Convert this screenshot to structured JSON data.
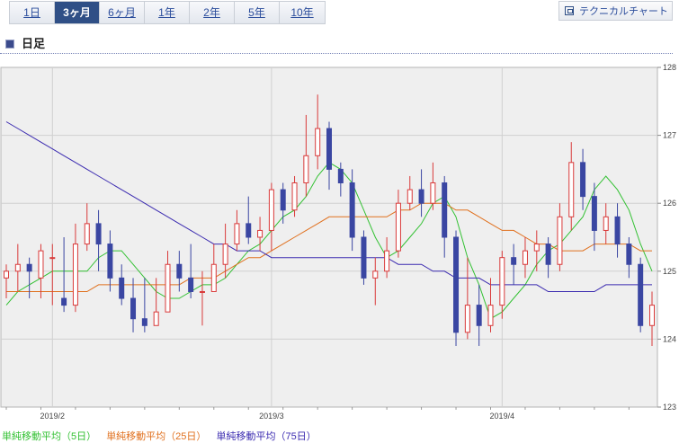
{
  "periods": [
    "1日",
    "3ヶ月",
    "6ヶ月",
    "1年",
    "2年",
    "5年",
    "10年"
  ],
  "active_period": "3ヶ月",
  "technical_button": "テクニカルチャート",
  "section_title": "日足",
  "legend": {
    "ma5": "単純移動平均（5日）",
    "ma25": "単純移動平均（25日）",
    "ma75": "単純移動平均（75日）"
  },
  "colors": {
    "up": "#d93a3a",
    "down": "#3a46a2",
    "ma5": "#33c133",
    "ma25": "#e0701e",
    "ma75": "#3b2bb0",
    "tab_active": "#2f4f86"
  },
  "chart_data": {
    "type": "candlestick",
    "ylim": [
      123,
      128
    ],
    "y_ticks": [
      "128",
      "127",
      "126",
      "125",
      "124",
      "123"
    ],
    "x_ticks": [
      {
        "label": "2019/2",
        "index": 4
      },
      {
        "label": "2019/3",
        "index": 23
      },
      {
        "label": "2019/4",
        "index": 43
      }
    ],
    "candles": [
      [
        124.9,
        125.0,
        124.6,
        125.1
      ],
      [
        125.0,
        125.1,
        124.7,
        125.4
      ],
      [
        125.1,
        125.0,
        124.6,
        125.2
      ],
      [
        124.9,
        125.3,
        124.6,
        125.4
      ],
      [
        125.2,
        125.2,
        124.5,
        125.4
      ],
      [
        124.6,
        124.5,
        124.4,
        125.5
      ],
      [
        124.5,
        125.4,
        124.4,
        125.7
      ],
      [
        125.4,
        125.7,
        125.3,
        126.0
      ],
      [
        125.7,
        125.4,
        125.0,
        125.9
      ],
      [
        125.4,
        124.9,
        124.7,
        125.6
      ],
      [
        124.9,
        124.6,
        124.5,
        125.1
      ],
      [
        124.6,
        124.3,
        124.1,
        124.9
      ],
      [
        124.3,
        124.2,
        124.1,
        124.9
      ],
      [
        124.2,
        124.4,
        124.2,
        124.9
      ],
      [
        124.4,
        125.1,
        124.4,
        125.3
      ],
      [
        125.1,
        124.9,
        124.7,
        125.3
      ],
      [
        124.9,
        124.7,
        124.6,
        125.4
      ],
      [
        124.7,
        124.7,
        124.2,
        125.0
      ],
      [
        124.7,
        125.1,
        124.7,
        125.4
      ],
      [
        125.1,
        125.4,
        124.9,
        125.7
      ],
      [
        125.4,
        125.7,
        125.3,
        125.9
      ],
      [
        125.7,
        125.5,
        125.4,
        126.1
      ],
      [
        125.5,
        125.6,
        125.3,
        125.8
      ],
      [
        125.6,
        126.2,
        125.3,
        126.3
      ],
      [
        126.2,
        125.9,
        125.7,
        126.3
      ],
      [
        125.9,
        126.3,
        125.8,
        126.4
      ],
      [
        126.3,
        126.7,
        126.1,
        127.3
      ],
      [
        126.7,
        127.1,
        126.5,
        127.6
      ],
      [
        127.1,
        126.5,
        126.2,
        127.2
      ],
      [
        126.5,
        126.3,
        126.1,
        126.6
      ],
      [
        126.3,
        125.5,
        125.3,
        126.5
      ],
      [
        125.5,
        124.9,
        124.8,
        125.6
      ],
      [
        124.9,
        125.0,
        124.5,
        125.2
      ],
      [
        125.0,
        125.3,
        124.9,
        125.5
      ],
      [
        125.3,
        126.0,
        125.2,
        126.2
      ],
      [
        126.0,
        126.2,
        125.9,
        126.4
      ],
      [
        126.2,
        126.0,
        125.8,
        126.5
      ],
      [
        126.0,
        126.3,
        125.9,
        126.6
      ],
      [
        126.3,
        125.5,
        125.2,
        126.4
      ],
      [
        125.5,
        124.1,
        123.9,
        125.6
      ],
      [
        124.1,
        124.5,
        124.0,
        125.2
      ],
      [
        124.5,
        124.2,
        123.9,
        124.8
      ],
      [
        124.2,
        124.5,
        124.1,
        124.9
      ],
      [
        124.5,
        125.2,
        124.3,
        125.3
      ],
      [
        125.2,
        125.1,
        124.8,
        125.4
      ],
      [
        125.1,
        125.3,
        124.9,
        125.5
      ],
      [
        125.3,
        125.4,
        125.0,
        125.6
      ],
      [
        125.4,
        125.1,
        124.9,
        125.5
      ],
      [
        125.1,
        125.8,
        125.0,
        126.0
      ],
      [
        125.8,
        126.6,
        125.6,
        126.9
      ],
      [
        126.6,
        126.1,
        125.9,
        126.8
      ],
      [
        126.1,
        125.6,
        125.3,
        126.3
      ],
      [
        125.6,
        125.8,
        125.4,
        126.0
      ],
      [
        125.8,
        125.4,
        125.2,
        126.0
      ],
      [
        125.4,
        125.1,
        124.9,
        125.5
      ],
      [
        125.1,
        124.2,
        124.1,
        125.2
      ],
      [
        124.2,
        124.5,
        123.9,
        124.7
      ]
    ],
    "series": [
      {
        "name": "単純移動平均（5日）",
        "values": [
          124.5,
          124.7,
          124.8,
          124.9,
          125.0,
          125.0,
          125.0,
          125.0,
          125.2,
          125.3,
          125.3,
          125.1,
          124.9,
          124.7,
          124.6,
          124.6,
          124.7,
          124.8,
          124.8,
          124.9,
          125.1,
          125.3,
          125.4,
          125.6,
          125.8,
          125.9,
          126.1,
          126.4,
          126.6,
          126.5,
          126.3,
          125.9,
          125.5,
          125.2,
          125.3,
          125.5,
          125.7,
          126.0,
          126.1,
          125.8,
          125.2,
          124.8,
          124.3,
          124.4,
          124.6,
          124.8,
          125.1,
          125.3,
          125.4,
          125.6,
          125.8,
          126.2,
          126.4,
          126.2,
          125.9,
          125.4,
          125.0
        ]
      },
      {
        "name": "単純移動平均（25日）",
        "values": [
          124.7,
          124.7,
          124.7,
          124.7,
          124.7,
          124.7,
          124.7,
          124.7,
          124.8,
          124.8,
          124.8,
          124.8,
          124.8,
          124.8,
          124.8,
          124.8,
          124.9,
          124.9,
          124.9,
          125.0,
          125.1,
          125.2,
          125.2,
          125.3,
          125.4,
          125.5,
          125.6,
          125.7,
          125.8,
          125.8,
          125.8,
          125.8,
          125.8,
          125.8,
          125.9,
          125.9,
          126.0,
          126.0,
          126.0,
          125.9,
          125.9,
          125.8,
          125.7,
          125.6,
          125.6,
          125.5,
          125.4,
          125.4,
          125.3,
          125.3,
          125.3,
          125.4,
          125.4,
          125.4,
          125.4,
          125.3,
          125.3
        ]
      },
      {
        "name": "単純移動平均（75日）",
        "values": [
          127.2,
          127.1,
          127.0,
          126.9,
          126.8,
          126.7,
          126.6,
          126.5,
          126.4,
          126.3,
          126.2,
          126.1,
          126.0,
          125.9,
          125.8,
          125.7,
          125.6,
          125.5,
          125.4,
          125.4,
          125.3,
          125.3,
          125.3,
          125.2,
          125.2,
          125.2,
          125.2,
          125.2,
          125.2,
          125.2,
          125.2,
          125.2,
          125.2,
          125.2,
          125.1,
          125.1,
          125.1,
          125.0,
          125.0,
          124.9,
          124.9,
          124.9,
          124.8,
          124.8,
          124.8,
          124.8,
          124.8,
          124.7,
          124.7,
          124.7,
          124.7,
          124.7,
          124.8,
          124.8,
          124.8,
          124.8,
          124.8
        ]
      }
    ]
  }
}
